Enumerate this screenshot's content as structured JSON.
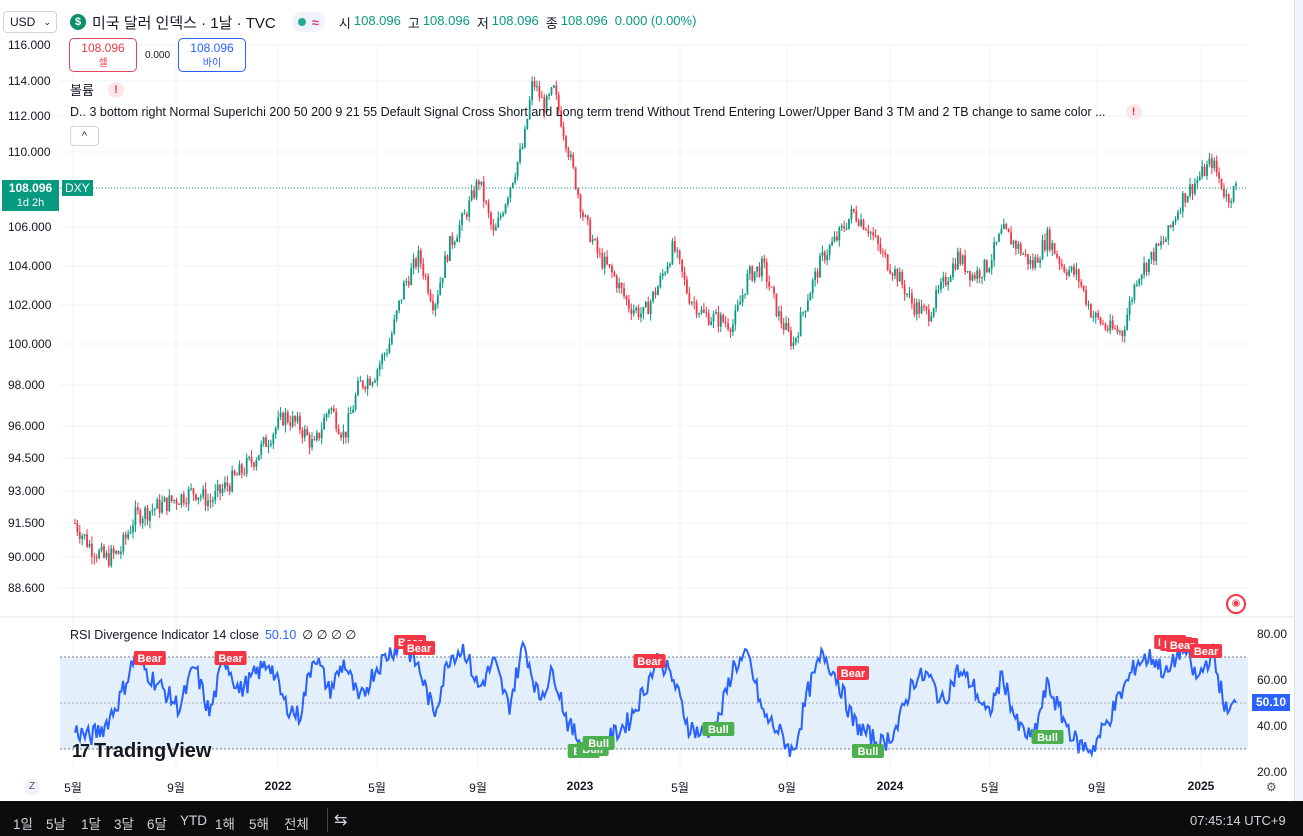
{
  "toolbar": {
    "symbol_select": "USD",
    "chevron": "⌄"
  },
  "header": {
    "icon_letter": "$",
    "title": "미국 달러 인덱스 · 1날 · TVC",
    "status_wave": "≈",
    "ohlc": [
      {
        "k": "시",
        "v": "108.096"
      },
      {
        "k": "고",
        "v": "108.096"
      },
      {
        "k": "저",
        "v": "108.096"
      },
      {
        "k": "종",
        "v": "108.096"
      }
    ],
    "change": "0.000 (0.00%)"
  },
  "trade": {
    "sell_price": "108.096",
    "sell_label": "셀",
    "spread": "0.000",
    "buy_price": "108.096",
    "buy_label": "바이"
  },
  "indicators": {
    "volume_label": "볼륨",
    "warn": "!",
    "superichi_line": "D.. 3 bottom right Normal SuperIchi 200 50 200 9 21 55 Default Signal Cross Short and Long term trend Without Trend Entering Lower/Upper Band 3 TM and 2 TB change to same color ...",
    "collapse": "^"
  },
  "price_axis": [
    "116.000",
    "114.000",
    "112.000",
    "110.000",
    "106.000",
    "104.000",
    "102.000",
    "100.000",
    "98.000",
    "96.000",
    "94.500",
    "93.000",
    "91.500",
    "90.000",
    "88.600"
  ],
  "last_price": {
    "value": "108.096",
    "countdown": "1d 2h",
    "ticker": "DXY"
  },
  "rsi": {
    "title": "RSI Divergence Indicator 14 close",
    "value": "50.10",
    "extras": "∅ ∅ ∅ ∅",
    "axis": [
      "80.00",
      "60.00",
      "40.00",
      "20.00"
    ],
    "tag": "50.10",
    "bear_label": "Bear",
    "bull_label": "Bull"
  },
  "x_axis": [
    {
      "t": "5월",
      "x": 73,
      "b": false
    },
    {
      "t": "9월",
      "x": 176,
      "b": false
    },
    {
      "t": "2022",
      "x": 278,
      "b": true
    },
    {
      "t": "5월",
      "x": 377,
      "b": false
    },
    {
      "t": "9월",
      "x": 478,
      "b": false
    },
    {
      "t": "2023",
      "x": 580,
      "b": true
    },
    {
      "t": "5월",
      "x": 680,
      "b": false
    },
    {
      "t": "9월",
      "x": 787,
      "b": false
    },
    {
      "t": "2024",
      "x": 890,
      "b": true
    },
    {
      "t": "5월",
      "x": 990,
      "b": false
    },
    {
      "t": "9월",
      "x": 1097,
      "b": false
    },
    {
      "t": "2025",
      "x": 1201,
      "b": true
    }
  ],
  "bottom": {
    "z_btn": "Z",
    "gear": "⚙",
    "timeframes": [
      "1일",
      "5날",
      "1달",
      "3달",
      "6달",
      "YTD",
      "1해",
      "5해",
      "전체"
    ],
    "clock": "07:45:14 UTC+9"
  },
  "logo": {
    "mark": "17",
    "name": "TradingView"
  },
  "globe": "◉",
  "colors": {
    "up": "#089981",
    "down": "#f23645",
    "rsi": "#2962ff",
    "band": "#e3f0fc"
  },
  "chart_data": {
    "type": "candlestick",
    "price_ylim": [
      88.0,
      116.0
    ],
    "price_path": [
      [
        2021.3,
        91.5
      ],
      [
        2021.35,
        90.5
      ],
      [
        2021.4,
        89.9
      ],
      [
        2021.45,
        90.2
      ],
      [
        2021.5,
        91.8
      ],
      [
        2021.6,
        92.4
      ],
      [
        2021.7,
        93.0
      ],
      [
        2021.75,
        92.5
      ],
      [
        2021.85,
        93.8
      ],
      [
        2021.9,
        94.5
      ],
      [
        2021.95,
        95.5
      ],
      [
        2022.0,
        96.5
      ],
      [
        2022.05,
        96.0
      ],
      [
        2022.1,
        95.0
      ],
      [
        2022.15,
        97.0
      ],
      [
        2022.2,
        95.5
      ],
      [
        2022.25,
        98.0
      ],
      [
        2022.3,
        98.5
      ],
      [
        2022.35,
        100.0
      ],
      [
        2022.4,
        103.0
      ],
      [
        2022.45,
        104.5
      ],
      [
        2022.5,
        102.0
      ],
      [
        2022.55,
        105.0
      ],
      [
        2022.6,
        106.5
      ],
      [
        2022.65,
        108.5
      ],
      [
        2022.7,
        105.5
      ],
      [
        2022.75,
        108.0
      ],
      [
        2022.8,
        110.5
      ],
      [
        2022.83,
        114.0
      ],
      [
        2022.87,
        112.5
      ],
      [
        2022.9,
        113.5
      ],
      [
        2022.95,
        110.0
      ],
      [
        2023.0,
        106.5
      ],
      [
        2023.05,
        104.5
      ],
      [
        2023.1,
        103.5
      ],
      [
        2023.15,
        102.0
      ],
      [
        2023.2,
        101.5
      ],
      [
        2023.25,
        103.0
      ],
      [
        2023.3,
        105.0
      ],
      [
        2023.35,
        102.5
      ],
      [
        2023.4,
        101.5
      ],
      [
        2023.5,
        101.0
      ],
      [
        2023.55,
        103.5
      ],
      [
        2023.6,
        104.0
      ],
      [
        2023.65,
        101.5
      ],
      [
        2023.7,
        100.0
      ],
      [
        2023.75,
        102.5
      ],
      [
        2023.8,
        104.5
      ],
      [
        2023.85,
        105.5
      ],
      [
        2023.9,
        106.8
      ],
      [
        2023.95,
        106.0
      ],
      [
        2024.0,
        104.5
      ],
      [
        2024.05,
        103.5
      ],
      [
        2024.1,
        102.0
      ],
      [
        2024.15,
        101.5
      ],
      [
        2024.2,
        103.0
      ],
      [
        2024.25,
        104.5
      ],
      [
        2024.3,
        103.5
      ],
      [
        2024.35,
        104.0
      ],
      [
        2024.4,
        105.8
      ],
      [
        2024.45,
        105.0
      ],
      [
        2024.5,
        104.0
      ],
      [
        2024.55,
        105.5
      ],
      [
        2024.6,
        104.0
      ],
      [
        2024.65,
        103.5
      ],
      [
        2024.7,
        101.5
      ],
      [
        2024.75,
        100.8
      ],
      [
        2024.8,
        100.6
      ],
      [
        2024.85,
        103.5
      ],
      [
        2024.9,
        104.5
      ],
      [
        2024.95,
        105.5
      ],
      [
        2025.0,
        107.5
      ],
      [
        2025.05,
        108.5
      ],
      [
        2025.1,
        109.5
      ],
      [
        2025.15,
        107.5
      ],
      [
        2025.18,
        108.096
      ]
    ],
    "rsi_ylim": [
      20,
      80
    ],
    "rsi_levels": [
      30,
      50,
      70
    ],
    "rsi_path": [
      [
        2021.3,
        38
      ],
      [
        2021.35,
        35
      ],
      [
        2021.4,
        40
      ],
      [
        2021.45,
        52
      ],
      [
        2021.5,
        70
      ],
      [
        2021.55,
        62
      ],
      [
        2021.6,
        55
      ],
      [
        2021.65,
        48
      ],
      [
        2021.7,
        66
      ],
      [
        2021.75,
        45
      ],
      [
        2021.8,
        70
      ],
      [
        2021.85,
        55
      ],
      [
        2021.9,
        62
      ],
      [
        2021.95,
        68
      ],
      [
        2022.0,
        50
      ],
      [
        2022.05,
        44
      ],
      [
        2022.1,
        72
      ],
      [
        2022.15,
        55
      ],
      [
        2022.2,
        68
      ],
      [
        2022.25,
        50
      ],
      [
        2022.3,
        64
      ],
      [
        2022.35,
        72
      ],
      [
        2022.4,
        76
      ],
      [
        2022.45,
        65
      ],
      [
        2022.5,
        45
      ],
      [
        2022.55,
        70
      ],
      [
        2022.6,
        74
      ],
      [
        2022.65,
        56
      ],
      [
        2022.7,
        68
      ],
      [
        2022.75,
        48
      ],
      [
        2022.8,
        76
      ],
      [
        2022.85,
        52
      ],
      [
        2022.9,
        64
      ],
      [
        2022.95,
        40
      ],
      [
        2023.0,
        32
      ],
      [
        2023.05,
        30
      ],
      [
        2023.1,
        36
      ],
      [
        2023.15,
        42
      ],
      [
        2023.2,
        55
      ],
      [
        2023.25,
        70
      ],
      [
        2023.3,
        60
      ],
      [
        2023.35,
        40
      ],
      [
        2023.4,
        36
      ],
      [
        2023.45,
        42
      ],
      [
        2023.5,
        66
      ],
      [
        2023.55,
        70
      ],
      [
        2023.6,
        45
      ],
      [
        2023.65,
        38
      ],
      [
        2023.7,
        28
      ],
      [
        2023.75,
        55
      ],
      [
        2023.8,
        72
      ],
      [
        2023.85,
        60
      ],
      [
        2023.9,
        42
      ],
      [
        2023.95,
        36
      ],
      [
        2024.0,
        32
      ],
      [
        2024.05,
        40
      ],
      [
        2024.1,
        60
      ],
      [
        2024.15,
        62
      ],
      [
        2024.2,
        50
      ],
      [
        2024.25,
        64
      ],
      [
        2024.3,
        58
      ],
      [
        2024.35,
        44
      ],
      [
        2024.4,
        62
      ],
      [
        2024.45,
        40
      ],
      [
        2024.5,
        34
      ],
      [
        2024.55,
        58
      ],
      [
        2024.6,
        44
      ],
      [
        2024.65,
        32
      ],
      [
        2024.7,
        30
      ],
      [
        2024.75,
        42
      ],
      [
        2024.8,
        55
      ],
      [
        2024.85,
        68
      ],
      [
        2024.9,
        70
      ],
      [
        2024.95,
        62
      ],
      [
        2025.0,
        75
      ],
      [
        2025.05,
        60
      ],
      [
        2025.1,
        72
      ],
      [
        2025.15,
        45
      ],
      [
        2025.18,
        50.1
      ]
    ],
    "bear_signals": [
      2021.55,
      2021.82,
      2022.42,
      2022.45,
      2023.22,
      2023.9,
      2024.96,
      2024.98,
      2025.0,
      2025.08
    ],
    "bull_signals": [
      2023.0,
      2023.03,
      2023.05,
      2023.45,
      2023.95,
      2024.55
    ]
  }
}
